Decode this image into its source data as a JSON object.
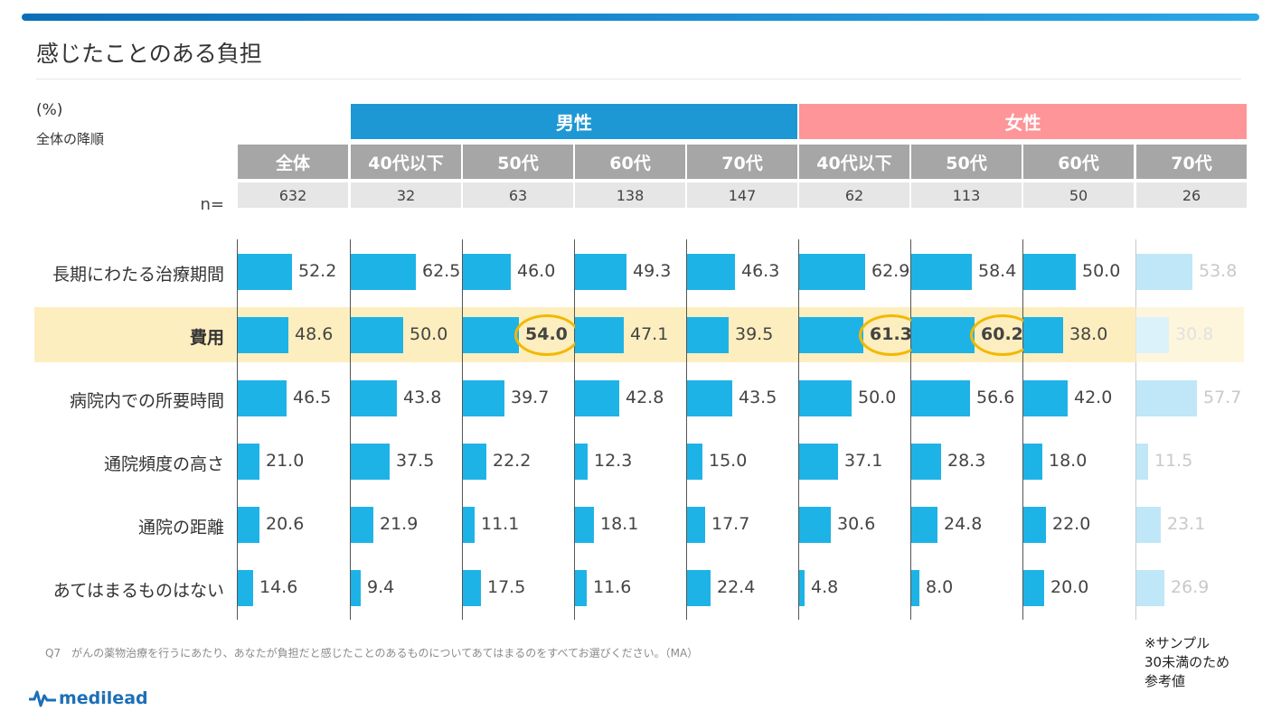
{
  "page": {
    "title": "感じたことのある負担",
    "unit_label": "(%)",
    "sort_note": "全体の降順",
    "n_label": "n=",
    "question": "Q7　がんの薬物治療を行うにあたり、あなたが負担だと感じたことのあるものについてあてはまるのをすべてお選びください。（MA）",
    "reference_note": [
      "※サンプル",
      "30未満のため",
      "参考値"
    ],
    "logo_text": "medilead"
  },
  "colors": {
    "male_header": "#1e98d4",
    "female_header": "#fe9598",
    "bar": "#1eb3e6",
    "bar_reference": "#bfe7f7",
    "highlight_row": "#fdeebf",
    "highlight_ring": "#f2b800"
  },
  "chart_data": {
    "type": "bar",
    "orientation": "horizontal",
    "unit": "%",
    "xlim": [
      0,
      100
    ],
    "groups": [
      {
        "name": "男性",
        "columns": [
          1,
          2,
          3,
          4
        ]
      },
      {
        "name": "女性",
        "columns": [
          5,
          6,
          7,
          8
        ]
      }
    ],
    "columns": [
      {
        "label": "全体",
        "n": "632"
      },
      {
        "label": "40代以下",
        "n": "32"
      },
      {
        "label": "50代",
        "n": "63"
      },
      {
        "label": "60代",
        "n": "138"
      },
      {
        "label": "70代",
        "n": "147"
      },
      {
        "label": "40代以下",
        "n": "62"
      },
      {
        "label": "50代",
        "n": "113"
      },
      {
        "label": "60代",
        "n": "50"
      },
      {
        "label": "70代",
        "n": "26",
        "reference": true
      }
    ],
    "categories": [
      "長期にわたる治療期間",
      "費用",
      "病院内での所要時間",
      "通院頻度の高さ",
      "通院の距離",
      "あてはまるものはない"
    ],
    "highlight_category": "費用",
    "values": [
      [
        "52.2",
        "62.5",
        "46.0",
        "49.3",
        "46.3",
        "62.9",
        "58.4",
        "50.0",
        "53.8"
      ],
      [
        "48.6",
        "50.0",
        "54.0",
        "47.1",
        "39.5",
        "61.3",
        "60.2",
        "38.0",
        "30.8"
      ],
      [
        "46.5",
        "43.8",
        "39.7",
        "42.8",
        "43.5",
        "50.0",
        "56.6",
        "42.0",
        "57.7"
      ],
      [
        "21.0",
        "37.5",
        "22.2",
        "12.3",
        "15.0",
        "37.1",
        "28.3",
        "18.0",
        "11.5"
      ],
      [
        "20.6",
        "21.9",
        "11.1",
        "18.1",
        "17.7",
        "30.6",
        "24.8",
        "22.0",
        "23.1"
      ],
      [
        "14.6",
        "9.4",
        "17.5",
        "11.6",
        "22.4",
        "4.8",
        "8.0",
        "20.0",
        "26.9"
      ]
    ],
    "circled": [
      [
        1,
        2
      ],
      [
        1,
        5
      ],
      [
        1,
        6
      ]
    ]
  }
}
